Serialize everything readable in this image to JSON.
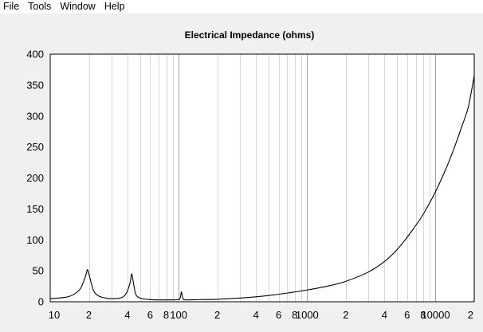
{
  "menu": {
    "items": [
      {
        "label": "File"
      },
      {
        "label": "Tools"
      },
      {
        "label": "Window"
      },
      {
        "label": "Help"
      }
    ]
  },
  "chart_data": {
    "type": "line",
    "title": "Electrical Impedance (ohms)",
    "xlabel": "",
    "ylabel": "",
    "x_scale": "log",
    "xlim": [
      10,
      20000
    ],
    "ylim": [
      0,
      400
    ],
    "y_ticks": [
      0,
      50,
      100,
      150,
      200,
      250,
      300,
      350,
      400
    ],
    "y_tick_labels": [
      "0",
      "50",
      "100",
      "150",
      "200",
      "250",
      "300",
      "350",
      "400"
    ],
    "x_ticks": [
      10,
      20,
      40,
      60,
      80,
      100,
      200,
      400,
      600,
      800,
      1000,
      2000,
      4000,
      6000,
      8000,
      10000,
      20000
    ],
    "x_tick_labels": [
      "10",
      "2",
      "4",
      "6",
      "8",
      "100",
      "2",
      "4",
      "6",
      "8",
      "1000",
      "2",
      "4",
      "6",
      "8",
      "10000",
      "2"
    ],
    "grid": true,
    "colors": {
      "line": "#000000",
      "plot_bg": "#ffffff",
      "grid_major": "#a0a0a0",
      "grid_minor": "#d8d8d8",
      "window_bg": "#f0f0f0"
    },
    "series": [
      {
        "x": [
          10,
          13,
          15,
          17,
          18,
          19,
          19.5,
          20,
          21,
          22,
          24,
          27,
          30,
          35,
          38,
          40,
          42,
          43,
          44,
          46,
          48,
          52,
          60,
          70,
          80,
          90,
          100,
          103,
          105,
          107,
          109,
          112,
          120,
          150,
          200,
          300,
          400,
          500,
          700,
          1000,
          1500,
          2000,
          3000,
          4000,
          5000,
          6000,
          7000,
          8000,
          9000,
          10000,
          12000,
          14000,
          16000,
          18000,
          20000
        ],
        "y": [
          5,
          7,
          11,
          20,
          30,
          44,
          52,
          45,
          28,
          16,
          9,
          6,
          5,
          6,
          10,
          18,
          32,
          45,
          36,
          14,
          8,
          5,
          3.5,
          3,
          3,
          3,
          3.5,
          7,
          16,
          8,
          4,
          3,
          3,
          3.5,
          4,
          6,
          8,
          10,
          14,
          19,
          26,
          33,
          48,
          65,
          84,
          104,
          123,
          141,
          160,
          178,
          214,
          249,
          283,
          315,
          365
        ]
      }
    ]
  }
}
